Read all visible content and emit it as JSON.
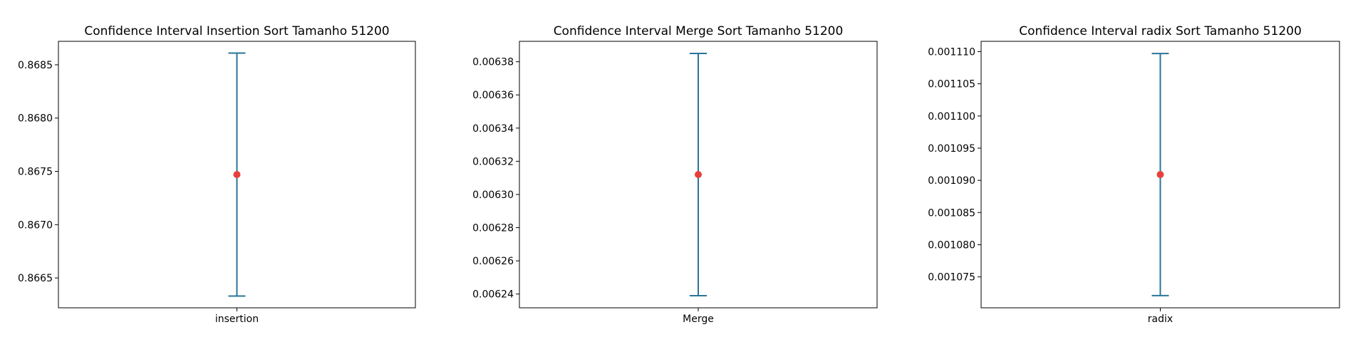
{
  "colors": {
    "interval": "#2a7599",
    "mean": "#e8413a",
    "axes": "#000000",
    "background": "#ffffff"
  },
  "chart_data": [
    {
      "type": "errorbar",
      "title": "Confidence Interval Insertion Sort Tamanho 51200",
      "categories": [
        "insertion"
      ],
      "mean": 0.86747,
      "lower": 0.86633,
      "upper": 0.86861,
      "yticks": [
        0.8665,
        0.867,
        0.8675,
        0.868,
        0.8685
      ],
      "ytick_labels": [
        "0.8665",
        "0.8670",
        "0.8675",
        "0.8680",
        "0.8685"
      ],
      "ylim": [
        0.86622,
        0.86872
      ],
      "grid": false
    },
    {
      "type": "errorbar",
      "title": "Confidence Interval Merge Sort Tamanho 51200",
      "categories": [
        "Merge"
      ],
      "mean": 0.006312,
      "lower": 0.006239,
      "upper": 0.006385,
      "yticks": [
        0.00624,
        0.00626,
        0.00628,
        0.0063,
        0.00632,
        0.00634,
        0.00636,
        0.00638
      ],
      "ytick_labels": [
        "0.00624",
        "0.00626",
        "0.00628",
        "0.00630",
        "0.00632",
        "0.00634",
        "0.00636",
        "0.00638"
      ],
      "ylim": [
        0.0062317,
        0.0063923
      ],
      "grid": false
    },
    {
      "type": "errorbar",
      "title": "Confidence Interval radix Sort Tamanho 51200",
      "categories": [
        "radix"
      ],
      "mean": 0.0010909,
      "lower": 0.0010721,
      "upper": 0.0011097,
      "yticks": [
        0.001075,
        0.00108,
        0.001085,
        0.00109,
        0.001095,
        0.0011,
        0.001105,
        0.00111
      ],
      "ytick_labels": [
        "0.001075",
        "0.001080",
        "0.001085",
        "0.001090",
        "0.001095",
        "0.001100",
        "0.001105",
        "0.001110"
      ],
      "ylim": [
        0.0010702,
        0.0011116
      ],
      "grid": false
    }
  ]
}
